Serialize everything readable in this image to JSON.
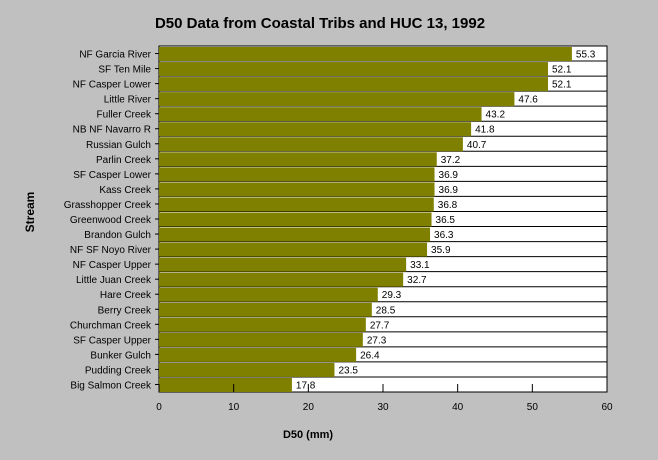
{
  "chart_data": {
    "type": "bar",
    "orientation": "horizontal",
    "title": "D50 Data from Coastal Tribs and HUC 13, 1992",
    "xlabel": "D50 (mm)",
    "ylabel": "Stream",
    "xlim": [
      0,
      60
    ],
    "xticks": [
      0,
      10,
      20,
      30,
      40,
      50,
      60
    ],
    "grid": "horizontal",
    "legend": "none",
    "data_labels": true,
    "bar_color": "#808000",
    "plot_background": "#ffffff",
    "page_background": "#c0c0c0",
    "categories": [
      "NF Garcia River",
      "SF Ten Mile",
      "NF Casper Lower",
      "Little River",
      "Fuller Creek",
      "NB NF Navarro R",
      "Russian Gulch",
      "Parlin Creek",
      "SF Casper Lower",
      "Kass Creek",
      "Grasshopper Creek",
      "Greenwood Creek",
      "Brandon Gulch",
      "NF SF Noyo River",
      "NF Casper Upper",
      "Little Juan Creek",
      "Hare Creek",
      "Berry Creek",
      "Churchman Creek",
      "SF Casper Upper",
      "Bunker Gulch",
      "Pudding Creek",
      "Big Salmon Creek"
    ],
    "values": [
      55.3,
      52.1,
      52.1,
      47.6,
      43.2,
      41.8,
      40.7,
      37.2,
      36.9,
      36.9,
      36.8,
      36.5,
      36.3,
      35.9,
      33.1,
      32.7,
      29.3,
      28.5,
      27.7,
      27.3,
      26.4,
      23.5,
      17.8
    ]
  }
}
